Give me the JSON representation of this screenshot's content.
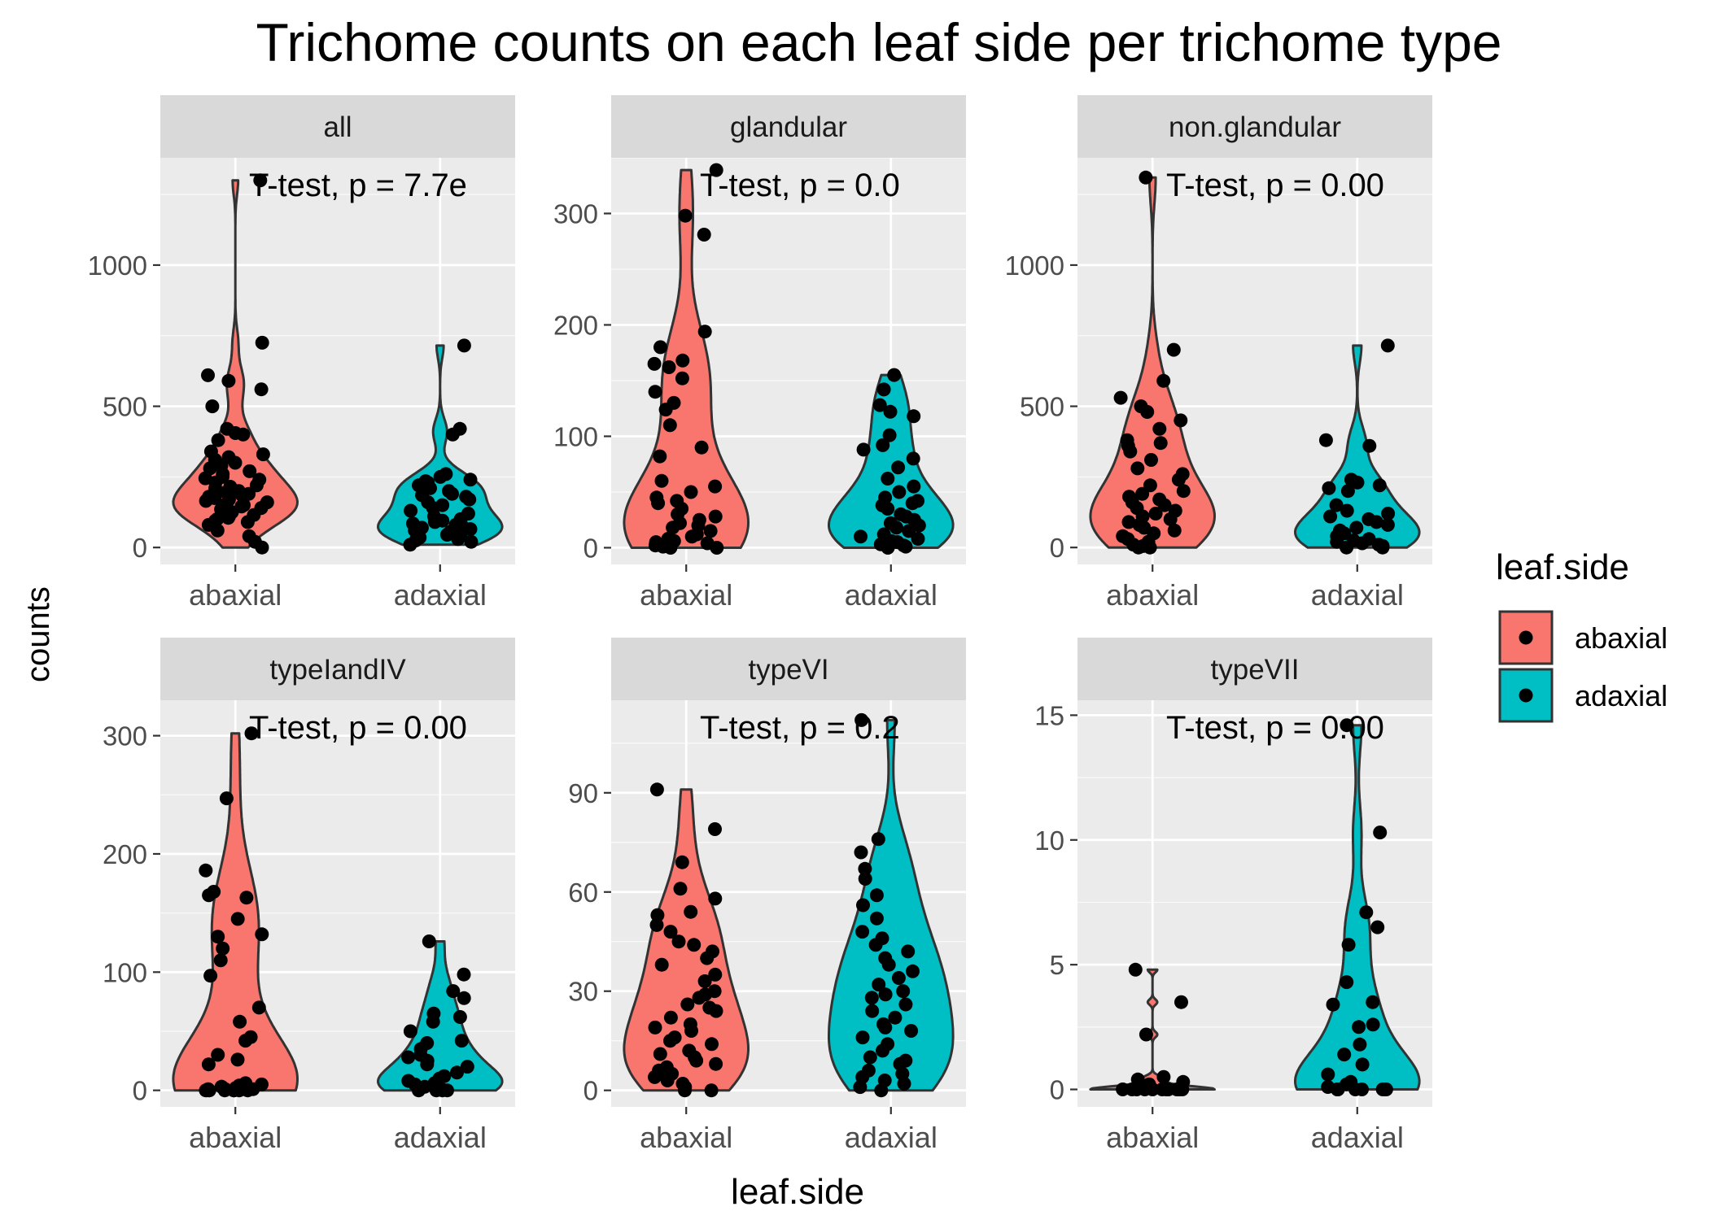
{
  "colors": {
    "panel_background": "#ebebeb",
    "strip_background": "#d9d9d9",
    "gridline": "#ffffff",
    "abaxial_fill": "#f8766d",
    "adaxial_fill": "#00bfc4",
    "point": "#000000",
    "outline": "#333333",
    "text_dark": "#000000",
    "text_axis": "#4d4d4d"
  },
  "chart_data": {
    "type": "violin",
    "title": "Trichome counts on each leaf side per trichome type",
    "xlabel": "leaf.side",
    "ylabel": "counts",
    "categories": [
      "abaxial",
      "adaxial"
    ],
    "grid": true,
    "legend": {
      "title": "leaf.side",
      "placement": "right",
      "entries": [
        {
          "label": "abaxial",
          "color": "#f8766d"
        },
        {
          "label": "adaxial",
          "color": "#00bfc4"
        }
      ]
    },
    "facets": [
      {
        "label": "all",
        "annotation": "T-test, p = 7.7e",
        "ylim": [
          -60,
          1380
        ],
        "yticks": [
          0,
          500,
          1000
        ],
        "series": [
          {
            "name": "abaxial",
            "values": [
              1300,
              725,
              610,
              590,
              560,
              500,
              420,
              405,
              400,
              380,
              340,
              330,
              320,
              310,
              300,
              290,
              280,
              270,
              260,
              250,
              245,
              240,
              230,
              220,
              215,
              210,
              200,
              195,
              190,
              185,
              180,
              175,
              170,
              165,
              160,
              155,
              150,
              145,
              140,
              135,
              130,
              125,
              120,
              115,
              110,
              105,
              100,
              95,
              90,
              80,
              60,
              40,
              20,
              0
            ]
          },
          {
            "name": "adaxial",
            "values": [
              715,
              420,
              400,
              260,
              250,
              240,
              235,
              230,
              220,
              210,
              200,
              190,
              185,
              180,
              170,
              160,
              150,
              140,
              130,
              120,
              110,
              100,
              95,
              90,
              85,
              80,
              75,
              70,
              65,
              60,
              55,
              50,
              45,
              40,
              35,
              30,
              25,
              20,
              10
            ]
          }
        ]
      },
      {
        "label": "glandular",
        "annotation": "T-test, p = 0.0",
        "ylim": [
          -15,
          350
        ],
        "yticks": [
          0,
          100,
          200,
          300
        ],
        "series": [
          {
            "name": "abaxial",
            "values": [
              339,
              298,
              281,
              194,
              180,
              168,
              165,
              162,
              152,
              140,
              130,
              124,
              110,
              90,
              82,
              60,
              55,
              50,
              45,
              42,
              40,
              35,
              30,
              28,
              25,
              22,
              20,
              18,
              15,
              12,
              10,
              8,
              6,
              5,
              4,
              3,
              2,
              1,
              0,
              0
            ]
          },
          {
            "name": "adaxial",
            "values": [
              155,
              142,
              128,
              122,
              118,
              101,
              92,
              88,
              80,
              72,
              62,
              55,
              50,
              45,
              42,
              40,
              38,
              35,
              30,
              28,
              25,
              22,
              20,
              18,
              15,
              12,
              10,
              8,
              6,
              5,
              3,
              2,
              1,
              0
            ]
          }
        ]
      },
      {
        "label": "non.glandular",
        "annotation": "T-test, p = 0.00",
        "ylim": [
          -60,
          1380
        ],
        "yticks": [
          0,
          500,
          1000
        ],
        "series": [
          {
            "name": "abaxial",
            "values": [
              1310,
              700,
              590,
              530,
              500,
              480,
              450,
              420,
              380,
              370,
              360,
              340,
              310,
              280,
              260,
              240,
              220,
              200,
              190,
              180,
              170,
              160,
              150,
              140,
              130,
              120,
              110,
              100,
              90,
              80,
              70,
              60,
              50,
              40,
              30,
              20,
              10,
              5,
              0,
              0
            ]
          },
          {
            "name": "adaxial",
            "values": [
              715,
              380,
              360,
              240,
              230,
              220,
              210,
              200,
              150,
              130,
              120,
              110,
              100,
              90,
              80,
              70,
              60,
              50,
              40,
              30,
              25,
              20,
              15,
              10,
              5,
              0,
              0
            ]
          }
        ]
      },
      {
        "label": "typeIandIV",
        "annotation": "T-test, p = 0.00",
        "ylim": [
          -14,
          330
        ],
        "yticks": [
          0,
          100,
          200,
          300
        ],
        "series": [
          {
            "name": "abaxial",
            "values": [
              302,
              247,
              186,
              168,
              165,
              163,
              145,
              132,
              130,
              120,
              110,
              97,
              70,
              58,
              45,
              42,
              30,
              26,
              22,
              6,
              5,
              4,
              3,
              3,
              2,
              2,
              1,
              1,
              1,
              0,
              0,
              0,
              0,
              0,
              0,
              0
            ]
          },
          {
            "name": "adaxial",
            "values": [
              126,
              98,
              84,
              78,
              65,
              62,
              58,
              50,
              42,
              40,
              35,
              30,
              28,
              25,
              22,
              20,
              15,
              12,
              10,
              8,
              6,
              5,
              4,
              3,
              2,
              1,
              1,
              0,
              0,
              0,
              0
            ]
          }
        ]
      },
      {
        "label": "typeVI",
        "annotation": "T-test, p = 0.2",
        "ylim": [
          -5,
          118
        ],
        "yticks": [
          0,
          30,
          60,
          90
        ],
        "series": [
          {
            "name": "abaxial",
            "values": [
              91,
              79,
              69,
              61,
              58,
              54,
              53,
              50,
              48,
              45,
              44,
              42,
              40,
              38,
              35,
              33,
              30,
              29,
              28,
              26,
              25,
              24,
              22,
              20,
              19,
              18,
              16,
              15,
              14,
              12,
              11,
              10,
              9,
              8,
              7,
              6,
              5,
              4,
              3,
              2,
              1,
              0,
              0
            ]
          },
          {
            "name": "adaxial",
            "values": [
              112,
              76,
              72,
              67,
              64,
              59,
              56,
              52,
              48,
              46,
              44,
              42,
              40,
              38,
              36,
              34,
              32,
              30,
              29,
              28,
              26,
              24,
              22,
              20,
              19,
              18,
              16,
              14,
              12,
              10,
              9,
              8,
              6,
              5,
              4,
              3,
              2,
              1,
              0
            ]
          }
        ]
      },
      {
        "label": "typeVII",
        "annotation": "T-test, p = 0.00",
        "ylim": [
          -0.7,
          15.6
        ],
        "yticks": [
          0,
          5,
          10,
          15
        ],
        "series": [
          {
            "name": "abaxial",
            "values": [
              4.8,
              3.5,
              2.2,
              0.5,
              0.4,
              0.3,
              0.2,
              0.1,
              0,
              0,
              0,
              0,
              0,
              0,
              0,
              0,
              0,
              0,
              0,
              0
            ]
          },
          {
            "name": "adaxial",
            "values": [
              14.6,
              10.3,
              7.1,
              6.5,
              5.8,
              4.3,
              3.5,
              3.4,
              2.6,
              2.5,
              1.8,
              1.4,
              1.0,
              0.6,
              0.3,
              0.2,
              0.1,
              0,
              0,
              0,
              0,
              0,
              0,
              0,
              0,
              0
            ]
          }
        ]
      }
    ]
  }
}
